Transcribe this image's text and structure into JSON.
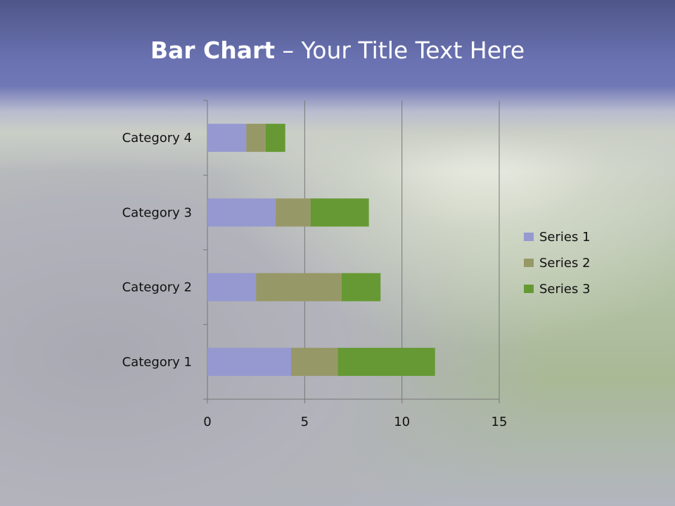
{
  "slide": {
    "title_bold": "Bar Chart",
    "title_rest": " – Your Title Text Here"
  },
  "chart_data": {
    "type": "bar",
    "orientation": "horizontal",
    "stacked": true,
    "categories": [
      "Category 1",
      "Category 2",
      "Category 3",
      "Category 4"
    ],
    "series": [
      {
        "name": "Series 1",
        "values": [
          4.3,
          2.5,
          3.5,
          2.0
        ],
        "color": "#9599cf"
      },
      {
        "name": "Series 2",
        "values": [
          2.4,
          4.4,
          1.8,
          1.0
        ],
        "color": "#979867"
      },
      {
        "name": "Series 3",
        "values": [
          5.0,
          2.0,
          3.0,
          1.0
        ],
        "color": "#669933"
      }
    ],
    "xlim": [
      0,
      15
    ],
    "xticks": [
      "0",
      "5",
      "10",
      "15"
    ],
    "grid": true,
    "legend": "right"
  }
}
